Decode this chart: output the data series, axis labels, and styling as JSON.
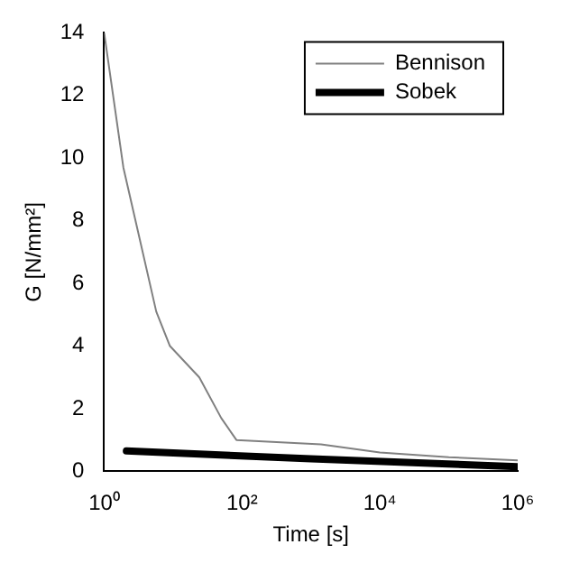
{
  "chart_data": {
    "type": "line",
    "xlabel": "Time [s]",
    "ylabel": "G [N/mm²]",
    "log": "x",
    "xlim": [
      1,
      1000000
    ],
    "xticks": [
      {
        "value": 1,
        "label": "10⁰"
      },
      {
        "value": 100,
        "label": "10²"
      },
      {
        "value": 10000,
        "label": "10⁴"
      },
      {
        "value": 1000000,
        "label": "10⁶"
      }
    ],
    "ylim": [
      0,
      14
    ],
    "yticks": [
      0,
      2,
      4,
      6,
      8,
      10,
      12,
      14
    ],
    "grid": false,
    "legend": "top right",
    "marker": "none",
    "line_style": "solid",
    "series": [
      {
        "name": "Bennison",
        "color": "#808080",
        "x": [
          1,
          1.9,
          5.7,
          9,
          24,
          50,
          83,
          1400,
          10000,
          100000,
          1000000
        ],
        "values": [
          14,
          9.7,
          5.1,
          4.0,
          3.0,
          1.7,
          1.0,
          0.86,
          0.6,
          0.45,
          0.35
        ]
      },
      {
        "name": "Sobek",
        "color": "#000000",
        "x": [
          2.1,
          1000,
          1000000
        ],
        "values": [
          0.65,
          0.4,
          0.15
        ]
      }
    ]
  }
}
